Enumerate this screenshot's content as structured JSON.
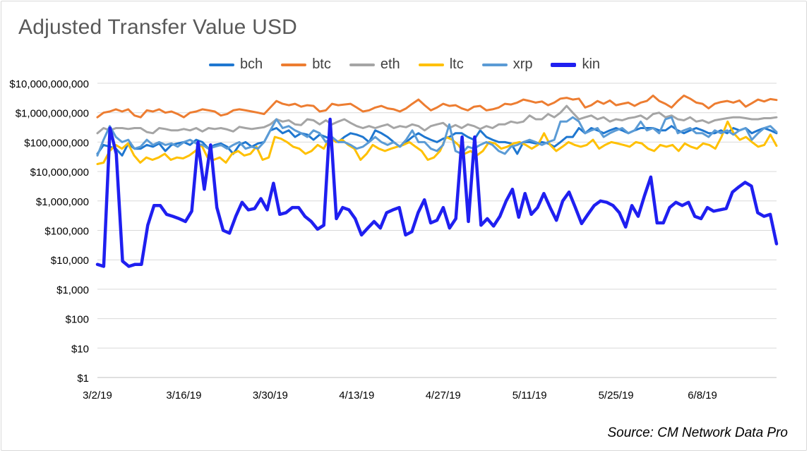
{
  "title": "Adjusted Transfer Value USD",
  "source": "Source: CM Network Data Pro",
  "chart_data": {
    "type": "line",
    "yscale": "log",
    "ylim": [
      1,
      10000000000
    ],
    "y_ticks": [
      "$10,000,000,000",
      "$1,000,000,000",
      "$100,000,000",
      "$10,000,000",
      "$1,000,000",
      "$100,000",
      "$10,000",
      "$1,000",
      "$100",
      "$10",
      "$1"
    ],
    "x_ticks": [
      "3/2/19",
      "3/16/19",
      "3/30/19",
      "4/13/19",
      "4/27/19",
      "5/11/19",
      "5/25/19",
      "6/8/19"
    ],
    "x_start": "2019-03-02",
    "x_end": "2019-06-20",
    "legend_position": "top",
    "grid": "horizontal",
    "series": [
      {
        "name": "bch",
        "color": "#1f77d0",
        "values": [
          40000000,
          80000000,
          70000000,
          60000000,
          35000000,
          90000000,
          60000000,
          60000000,
          80000000,
          70000000,
          90000000,
          50000000,
          80000000,
          90000000,
          100000000,
          80000000,
          120000000,
          100000000,
          60000000,
          80000000,
          90000000,
          70000000,
          40000000,
          80000000,
          100000000,
          70000000,
          90000000,
          100000000,
          250000000,
          300000000,
          200000000,
          250000000,
          150000000,
          200000000,
          180000000,
          120000000,
          180000000,
          150000000,
          120000000,
          100000000,
          150000000,
          200000000,
          180000000,
          150000000,
          100000000,
          250000000,
          200000000,
          150000000,
          100000000,
          70000000,
          100000000,
          150000000,
          200000000,
          150000000,
          120000000,
          100000000,
          130000000,
          150000000,
          200000000,
          200000000,
          150000000,
          120000000,
          250000000,
          150000000,
          120000000,
          100000000,
          100000000,
          90000000,
          40000000,
          100000000,
          100000000,
          90000000,
          100000000,
          90000000,
          70000000,
          100000000,
          150000000,
          150000000,
          300000000,
          200000000,
          300000000,
          250000000,
          200000000,
          250000000,
          300000000,
          250000000,
          200000000,
          250000000,
          300000000,
          300000000,
          300000000,
          250000000,
          250000000,
          350000000,
          250000000,
          200000000,
          250000000,
          300000000,
          250000000,
          200000000,
          200000000,
          250000000,
          200000000,
          300000000,
          250000000,
          300000000,
          200000000,
          250000000,
          300000000,
          250000000,
          200000000
        ]
      },
      {
        "name": "btc",
        "color": "#ed7d31",
        "values": [
          700000000,
          1000000000,
          1100000000,
          1300000000,
          1100000000,
          1300000000,
          800000000,
          700000000,
          1200000000,
          1100000000,
          1300000000,
          1000000000,
          1100000000,
          900000000,
          700000000,
          1000000000,
          1100000000,
          1300000000,
          1200000000,
          1100000000,
          800000000,
          900000000,
          1200000000,
          1300000000,
          1200000000,
          1100000000,
          1000000000,
          900000000,
          1500000000,
          2500000000,
          2000000000,
          1800000000,
          2000000000,
          1600000000,
          1800000000,
          1700000000,
          1100000000,
          1200000000,
          2000000000,
          1800000000,
          1900000000,
          2000000000,
          1500000000,
          1100000000,
          1200000000,
          1500000000,
          1700000000,
          1400000000,
          1300000000,
          1100000000,
          1400000000,
          2000000000,
          2800000000,
          1800000000,
          1200000000,
          1500000000,
          2000000000,
          1700000000,
          1800000000,
          1400000000,
          1200000000,
          1600000000,
          1700000000,
          1200000000,
          1300000000,
          1500000000,
          2000000000,
          1900000000,
          2200000000,
          2800000000,
          2500000000,
          2200000000,
          2400000000,
          1800000000,
          2200000000,
          3000000000,
          3200000000,
          2800000000,
          3000000000,
          1500000000,
          1800000000,
          2500000000,
          2000000000,
          2600000000,
          1800000000,
          2000000000,
          2200000000,
          1700000000,
          2200000000,
          2500000000,
          3800000000,
          2500000000,
          2000000000,
          1500000000,
          2500000000,
          3800000000,
          3000000000,
          2200000000,
          2000000000,
          1400000000,
          2000000000,
          2300000000,
          2500000000,
          2200000000,
          2600000000,
          1600000000,
          2100000000,
          2800000000,
          2400000000,
          2900000000,
          2700000000
        ]
      },
      {
        "name": "eth",
        "color": "#a5a5a5",
        "values": [
          200000000,
          300000000,
          250000000,
          300000000,
          300000000,
          280000000,
          300000000,
          300000000,
          220000000,
          200000000,
          300000000,
          280000000,
          250000000,
          250000000,
          280000000,
          250000000,
          300000000,
          230000000,
          300000000,
          280000000,
          300000000,
          270000000,
          230000000,
          330000000,
          300000000,
          280000000,
          300000000,
          320000000,
          400000000,
          600000000,
          500000000,
          550000000,
          400000000,
          380000000,
          600000000,
          550000000,
          400000000,
          550000000,
          400000000,
          500000000,
          600000000,
          450000000,
          350000000,
          300000000,
          350000000,
          300000000,
          350000000,
          400000000,
          300000000,
          350000000,
          320000000,
          400000000,
          350000000,
          250000000,
          350000000,
          400000000,
          450000000,
          300000000,
          380000000,
          300000000,
          400000000,
          350000000,
          280000000,
          350000000,
          300000000,
          400000000,
          400000000,
          500000000,
          450000000,
          500000000,
          800000000,
          600000000,
          600000000,
          900000000,
          700000000,
          1000000000,
          1700000000,
          1000000000,
          600000000,
          700000000,
          800000000,
          600000000,
          700000000,
          500000000,
          600000000,
          550000000,
          650000000,
          700000000,
          800000000,
          600000000,
          900000000,
          1000000000,
          700000000,
          800000000,
          600000000,
          550000000,
          700000000,
          500000000,
          550000000,
          450000000,
          550000000,
          600000000,
          650000000,
          700000000,
          700000000,
          650000000,
          600000000,
          600000000,
          650000000,
          650000000,
          700000000
        ]
      },
      {
        "name": "ltc",
        "color": "#ffc000",
        "values": [
          18000000,
          20000000,
          50000000,
          80000000,
          60000000,
          90000000,
          35000000,
          20000000,
          30000000,
          25000000,
          30000000,
          40000000,
          25000000,
          30000000,
          28000000,
          35000000,
          50000000,
          80000000,
          30000000,
          25000000,
          30000000,
          20000000,
          40000000,
          50000000,
          35000000,
          40000000,
          70000000,
          25000000,
          30000000,
          150000000,
          130000000,
          100000000,
          70000000,
          60000000,
          40000000,
          50000000,
          80000000,
          60000000,
          150000000,
          100000000,
          120000000,
          80000000,
          60000000,
          25000000,
          40000000,
          80000000,
          60000000,
          50000000,
          60000000,
          70000000,
          80000000,
          100000000,
          70000000,
          50000000,
          25000000,
          30000000,
          50000000,
          150000000,
          120000000,
          80000000,
          40000000,
          50000000,
          35000000,
          50000000,
          100000000,
          90000000,
          60000000,
          70000000,
          90000000,
          100000000,
          80000000,
          60000000,
          80000000,
          200000000,
          80000000,
          50000000,
          70000000,
          100000000,
          80000000,
          70000000,
          80000000,
          120000000,
          60000000,
          80000000,
          100000000,
          90000000,
          80000000,
          70000000,
          100000000,
          90000000,
          60000000,
          50000000,
          80000000,
          70000000,
          80000000,
          50000000,
          90000000,
          70000000,
          60000000,
          90000000,
          80000000,
          60000000,
          150000000,
          500000000,
          200000000,
          120000000,
          150000000,
          100000000,
          70000000,
          80000000,
          180000000,
          75000000
        ]
      },
      {
        "name": "xrp",
        "color": "#5b9bd5",
        "values": [
          35000000,
          120000000,
          350000000,
          150000000,
          100000000,
          120000000,
          60000000,
          70000000,
          120000000,
          80000000,
          100000000,
          80000000,
          90000000,
          70000000,
          100000000,
          120000000,
          90000000,
          80000000,
          60000000,
          70000000,
          80000000,
          60000000,
          80000000,
          100000000,
          60000000,
          70000000,
          60000000,
          100000000,
          250000000,
          600000000,
          300000000,
          350000000,
          250000000,
          200000000,
          150000000,
          250000000,
          200000000,
          100000000,
          150000000,
          100000000,
          100000000,
          80000000,
          60000000,
          70000000,
          100000000,
          150000000,
          100000000,
          80000000,
          100000000,
          70000000,
          120000000,
          250000000,
          100000000,
          100000000,
          60000000,
          50000000,
          80000000,
          400000000,
          50000000,
          40000000,
          70000000,
          60000000,
          80000000,
          100000000,
          80000000,
          50000000,
          40000000,
          70000000,
          80000000,
          100000000,
          120000000,
          100000000,
          80000000,
          100000000,
          120000000,
          500000000,
          500000000,
          700000000,
          500000000,
          200000000,
          250000000,
          300000000,
          150000000,
          200000000,
          250000000,
          300000000,
          200000000,
          250000000,
          500000000,
          250000000,
          300000000,
          200000000,
          600000000,
          700000000,
          200000000,
          250000000,
          300000000,
          200000000,
          200000000,
          150000000,
          250000000,
          200000000,
          250000000,
          180000000,
          250000000,
          300000000,
          120000000,
          200000000,
          300000000,
          350000000,
          220000000
        ]
      },
      {
        "name": "kin",
        "color": "#1f1ff0",
        "values": [
          7000,
          6000,
          300000000,
          40000000,
          9000,
          6000,
          7000,
          7000,
          150000,
          700000,
          700000,
          350000,
          300000,
          250000,
          200000,
          450000,
          100000000,
          2500000,
          80000000,
          600000,
          100000,
          80000,
          300000,
          900000,
          500000,
          550000,
          1200000,
          500000,
          4000000,
          350000,
          400000,
          600000,
          600000,
          300000,
          200000,
          110000,
          150000,
          600000000,
          250000,
          600000,
          500000,
          250000,
          70000,
          120000,
          200000,
          120000,
          400000,
          500000,
          600000,
          70000,
          90000,
          400000,
          1100000,
          180000,
          220000,
          600000,
          120000,
          250000,
          150000000,
          200000,
          150000000,
          150000,
          250000,
          140000,
          300000,
          1000000,
          2500000,
          280000,
          1800000,
          350000,
          600000,
          1800000,
          600000,
          220000,
          1000000,
          2000000,
          600000,
          170000,
          350000,
          700000,
          1000000,
          900000,
          700000,
          400000,
          130000,
          700000,
          300000,
          1500000,
          6500000,
          180000,
          180000,
          600000,
          900000,
          700000,
          900000,
          300000,
          250000,
          600000,
          450000,
          500000,
          550000,
          2000000,
          3000000,
          4300000,
          3200000,
          400000,
          300000,
          350000,
          35000
        ]
      }
    ]
  }
}
